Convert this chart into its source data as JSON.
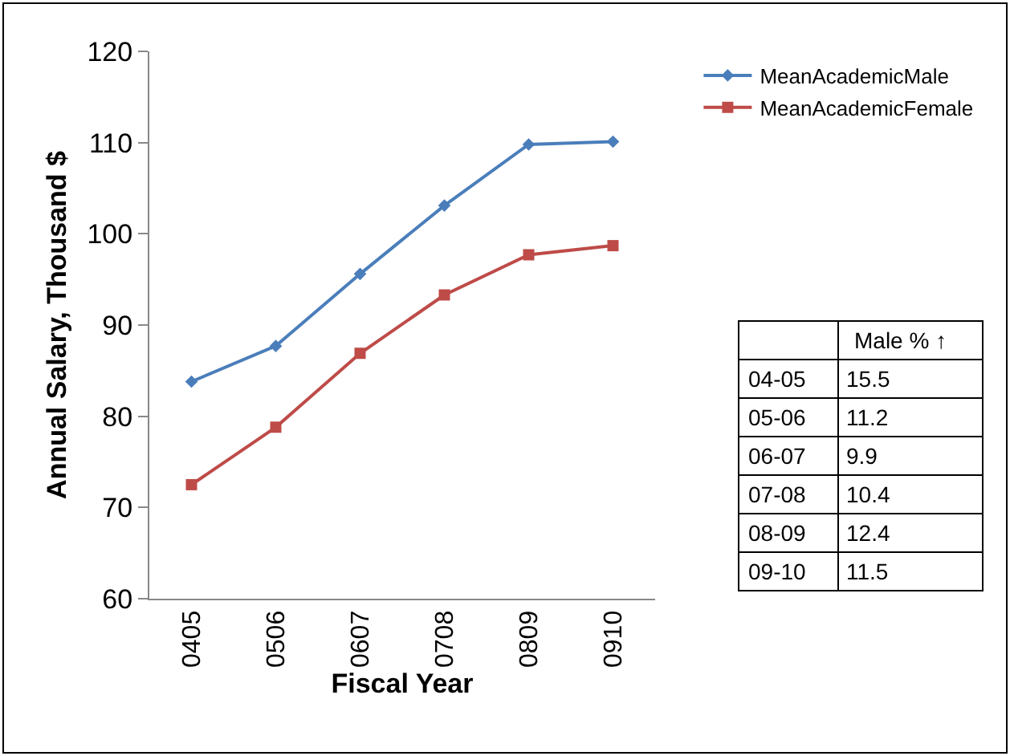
{
  "chart_data": [
    {
      "type": "line",
      "xlabel": "Fiscal Year",
      "ylabel": "Annual Salary, Thousand $",
      "categories": [
        "0405",
        "0506",
        "0607",
        "0708",
        "0809",
        "0910"
      ],
      "series": [
        {
          "name": "MeanAcademicMale",
          "color": "#4a7ebb",
          "marker": "diamond",
          "values": [
            83.8,
            87.7,
            95.6,
            103.1,
            109.8,
            110.1
          ]
        },
        {
          "name": "MeanAcademicFemale",
          "color": "#be4b48",
          "marker": "square",
          "values": [
            72.5,
            78.8,
            86.9,
            93.3,
            97.7,
            98.7
          ]
        }
      ],
      "ylim": [
        60,
        120
      ],
      "yticks": [
        60,
        70,
        80,
        90,
        100,
        110,
        120
      ],
      "legend": "top right",
      "line_style": "solid"
    },
    {
      "type": "other",
      "title": "Male % ↑",
      "categories": [
        "04-05",
        "05-06",
        "06-07",
        "07-08",
        "08-09",
        "09-10"
      ],
      "values": [
        15.5,
        11.2,
        9.9,
        10.4,
        12.4,
        11.5
      ],
      "data_labels": true
    }
  ]
}
